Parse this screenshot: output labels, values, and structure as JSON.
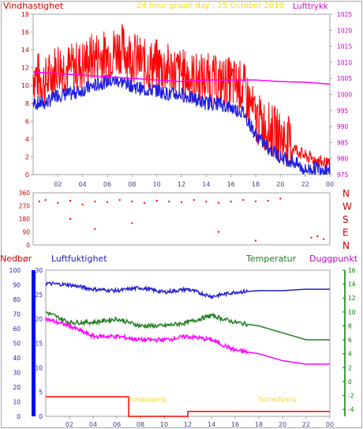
{
  "header": {
    "wind_label": "Vindhastighet",
    "title": "24 hour graph day : 25 October 2010",
    "pressure_label": "Lufttrykk"
  },
  "lower_labels": {
    "precip": "Nedbør",
    "humidity": "Luftfuktighet",
    "temperature": "Temperatur",
    "dewpoint": "Duggpunkt"
  },
  "colors": {
    "wind": "#ff0000",
    "wind_avg": "#2020e0",
    "pressure": "#ff00ff",
    "direction": "#ff0000",
    "humidity": "#2020d0",
    "temperature": "#208020",
    "dewpoint": "#ff00ff",
    "precip": "#ff0000",
    "sun": "#ffd700",
    "axis_text_wind": "#c00000",
    "axis_text_pressure": "#c000c0",
    "precip_axis": "#0000ff",
    "temp_axis": "#008000"
  },
  "chart_data": [
    {
      "id": "wind",
      "type": "line",
      "x_tick_labels": [
        "02",
        "04",
        "06",
        "08",
        "10",
        "12",
        "14",
        "16",
        "18",
        "20",
        "22",
        "00"
      ],
      "ylabel_left": "Vindhastighet",
      "ylim_left": [
        0,
        18
      ],
      "yticks_left": [
        "0",
        "2",
        "4",
        "6",
        "8",
        "10",
        "12",
        "14",
        "16",
        "18"
      ],
      "ylabel_right": "Lufttrykk",
      "ylim_right": [
        975,
        1025
      ],
      "yticks_right": [
        "975",
        "980",
        "985",
        "990",
        "995",
        "1000",
        "1005",
        "1010",
        "1015",
        "1020",
        "1025"
      ],
      "series": [
        {
          "role": "gust",
          "x": [
            0,
            1,
            2,
            3,
            4,
            5,
            6,
            7,
            8,
            9,
            10,
            11,
            12,
            13,
            14,
            15,
            16,
            17,
            18,
            19,
            20,
            21,
            22,
            23,
            24
          ],
          "values": [
            11,
            10,
            12,
            11.5,
            12,
            13,
            13,
            14,
            13,
            12,
            12,
            11.5,
            11,
            10.5,
            10.5,
            10,
            10,
            9.5,
            6,
            5,
            4,
            3,
            2,
            1.5,
            1
          ]
        },
        {
          "role": "mean",
          "x": [
            0,
            1,
            2,
            3,
            4,
            5,
            6,
            7,
            8,
            9,
            10,
            11,
            12,
            13,
            14,
            15,
            16,
            17,
            18,
            19,
            20,
            21,
            22,
            23,
            24
          ],
          "values": [
            8,
            8,
            9,
            9,
            9.5,
            10,
            10.5,
            10.5,
            10,
            9.5,
            9.5,
            9,
            9,
            8.5,
            8,
            8,
            7.5,
            7,
            4.5,
            3,
            2,
            1.5,
            0.5,
            0.8,
            0.6
          ]
        },
        {
          "role": "pressure",
          "x": [
            0,
            2,
            4,
            6,
            8,
            10,
            12,
            14,
            16,
            18,
            20,
            22,
            23,
            24
          ],
          "values": [
            1007,
            1006.5,
            1006,
            1005.5,
            1005,
            1004.5,
            1004,
            1004.5,
            1004.5,
            1004.5,
            1004,
            1003.8,
            1003.5,
            1003.2
          ]
        }
      ]
    },
    {
      "id": "direction",
      "type": "scatter",
      "ylim": [
        0,
        360
      ],
      "yticks": [
        "0",
        "90",
        "180",
        "270",
        "360"
      ],
      "compass": [
        "N",
        "W",
        "S",
        "E",
        "N"
      ],
      "points": [
        [
          0.5,
          300
        ],
        [
          1,
          310
        ],
        [
          2,
          290
        ],
        [
          3,
          305
        ],
        [
          4,
          280
        ],
        [
          5,
          300
        ],
        [
          6,
          295
        ],
        [
          7,
          310
        ],
        [
          8,
          300
        ],
        [
          9,
          290
        ],
        [
          10,
          305
        ],
        [
          11,
          300
        ],
        [
          12,
          295
        ],
        [
          13,
          310
        ],
        [
          14,
          300
        ],
        [
          15,
          290
        ],
        [
          16,
          300
        ],
        [
          17,
          310
        ],
        [
          18,
          300
        ],
        [
          19,
          305
        ],
        [
          20,
          320
        ],
        [
          22.5,
          50
        ],
        [
          23,
          60
        ],
        [
          23.5,
          40
        ],
        [
          3,
          180
        ],
        [
          5,
          110
        ],
        [
          8,
          150
        ],
        [
          15,
          90
        ],
        [
          18,
          30
        ]
      ]
    },
    {
      "id": "climate",
      "type": "line",
      "x_tick_labels": [
        "02",
        "04",
        "06",
        "08",
        "10",
        "12",
        "14",
        "16",
        "18",
        "20",
        "22",
        "00"
      ],
      "ylim_humidity": [
        0,
        100
      ],
      "yticks_humidity": [
        "0",
        "10",
        "20",
        "30",
        "40",
        "50",
        "60",
        "70",
        "80",
        "90",
        "100"
      ],
      "ylim_precip": [
        0,
        30
      ],
      "yticks_precip": [
        "0",
        "5",
        "10",
        "15",
        "20",
        "25",
        "30"
      ],
      "ylim_temp": [
        -5,
        16
      ],
      "yticks_temp": [
        "-4",
        "-2",
        "0",
        "2",
        "4",
        "6",
        "8",
        "10",
        "12",
        "14",
        "16"
      ],
      "series": [
        {
          "role": "humidity",
          "x": [
            0,
            2,
            4,
            6,
            8,
            10,
            12,
            14,
            16,
            18,
            20,
            22,
            24
          ],
          "values": [
            91,
            90,
            87,
            86,
            88,
            85,
            87,
            82,
            85,
            86,
            86,
            87,
            87
          ]
        },
        {
          "role": "temperature",
          "x": [
            0,
            2,
            4,
            6,
            8,
            10,
            12,
            14,
            16,
            18,
            20,
            22,
            24
          ],
          "values": [
            10,
            8.5,
            8.5,
            9,
            8,
            8,
            8.5,
            9.5,
            8.5,
            8,
            7,
            6,
            6
          ]
        },
        {
          "role": "dewpoint",
          "x": [
            0,
            2,
            4,
            6,
            8,
            10,
            12,
            14,
            16,
            18,
            20,
            22,
            24
          ],
          "values": [
            9,
            8,
            6.5,
            6.5,
            6,
            6,
            6.5,
            6,
            4.5,
            4,
            3,
            2.5,
            2.5
          ]
        },
        {
          "role": "precip",
          "x": [
            0,
            7,
            7,
            12,
            12,
            24
          ],
          "values": [
            4,
            4,
            0,
            0,
            1,
            1
          ]
        }
      ],
      "annotations": [
        {
          "text": "Soloppgang",
          "x": 7
        },
        {
          "text": "Solnedgang",
          "x": 18
        }
      ]
    }
  ]
}
